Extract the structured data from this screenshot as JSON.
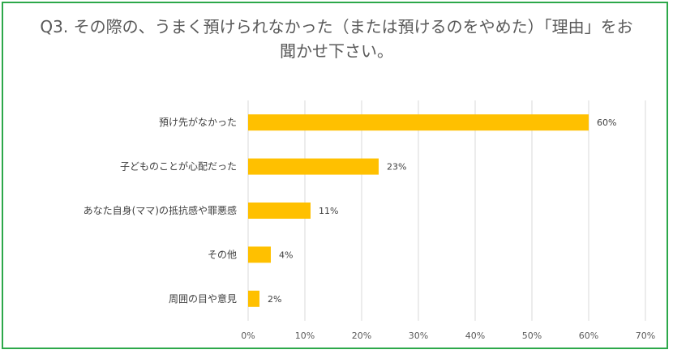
{
  "chart_data": {
    "type": "bar",
    "orientation": "horizontal",
    "title_line1": "Q3. その際の、うまく預けられなかった（または預けるのをやめた）「理由」をお",
    "title_line2": "聞かせ下さい。",
    "categories": [
      "預け先がなかった",
      "子どものことが心配だった",
      "あなた自身(ママ)の抵抗感や罪悪感",
      "その他",
      "周囲の目や意見"
    ],
    "values": [
      60,
      23,
      11,
      4,
      2
    ],
    "value_labels": [
      "60%",
      "23%",
      "11%",
      "4%",
      "2%"
    ],
    "xlim": [
      0,
      70
    ],
    "xticks": [
      "0%",
      "10%",
      "20%",
      "30%",
      "40%",
      "50%",
      "60%",
      "70%"
    ],
    "grid": true,
    "bar_color": "#ffc000",
    "frame_color": "#2da84a"
  }
}
